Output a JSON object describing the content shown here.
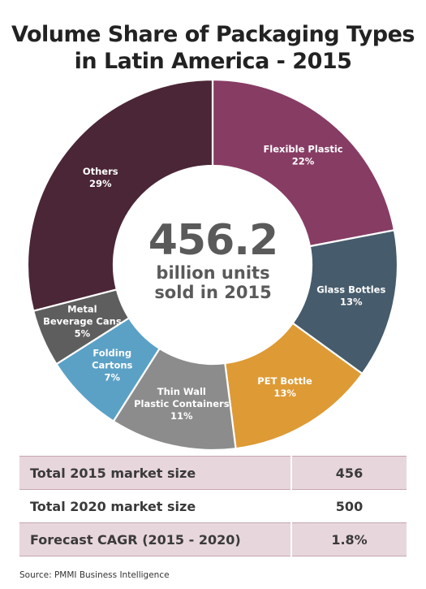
{
  "title_line1": "Volume Share of Packaging Types",
  "title_line2": "in Latin America - 2015",
  "center": {
    "value": "456.2",
    "line1": "billion units",
    "line2": "sold in 2015"
  },
  "chart_data": {
    "type": "pie",
    "donut": true,
    "title": "Volume Share of Packaging Types in Latin America - 2015",
    "categories": [
      "Flexible Plastic",
      "Glass Bottles",
      "PET Bottle",
      "Thin Wall Plastic Containers",
      "Folding Cartons",
      "Metal Beverage Cans",
      "Others"
    ],
    "values": [
      22,
      13,
      13,
      11,
      7,
      5,
      29
    ],
    "unit": "%",
    "colors": [
      "#873c64",
      "#465b6b",
      "#de9a34",
      "#8c8c8c",
      "#5ba1c6",
      "#5e5e5e",
      "#4b2636"
    ],
    "label_lines": [
      [
        "Flexible Plastic"
      ],
      [
        "Glass Bottles"
      ],
      [
        "PET Bottle"
      ],
      [
        "Thin Wall",
        "Plastic Containers"
      ],
      [
        "Folding",
        "Cartons"
      ],
      [
        "Metal",
        "Beverage Cans"
      ],
      [
        "Others"
      ]
    ],
    "value_labels": [
      "22%",
      "13%",
      "13%",
      "11%",
      "7%",
      "5%",
      "29%"
    ]
  },
  "table": {
    "rows": [
      {
        "label": "Total 2015 market size",
        "value": "456"
      },
      {
        "label": "Total 2020 market size",
        "value": "500"
      },
      {
        "label": "Forecast CAGR (2015 - 2020)",
        "value": "1.8%"
      }
    ]
  },
  "source": "Source: PMMI Business Intelligence"
}
